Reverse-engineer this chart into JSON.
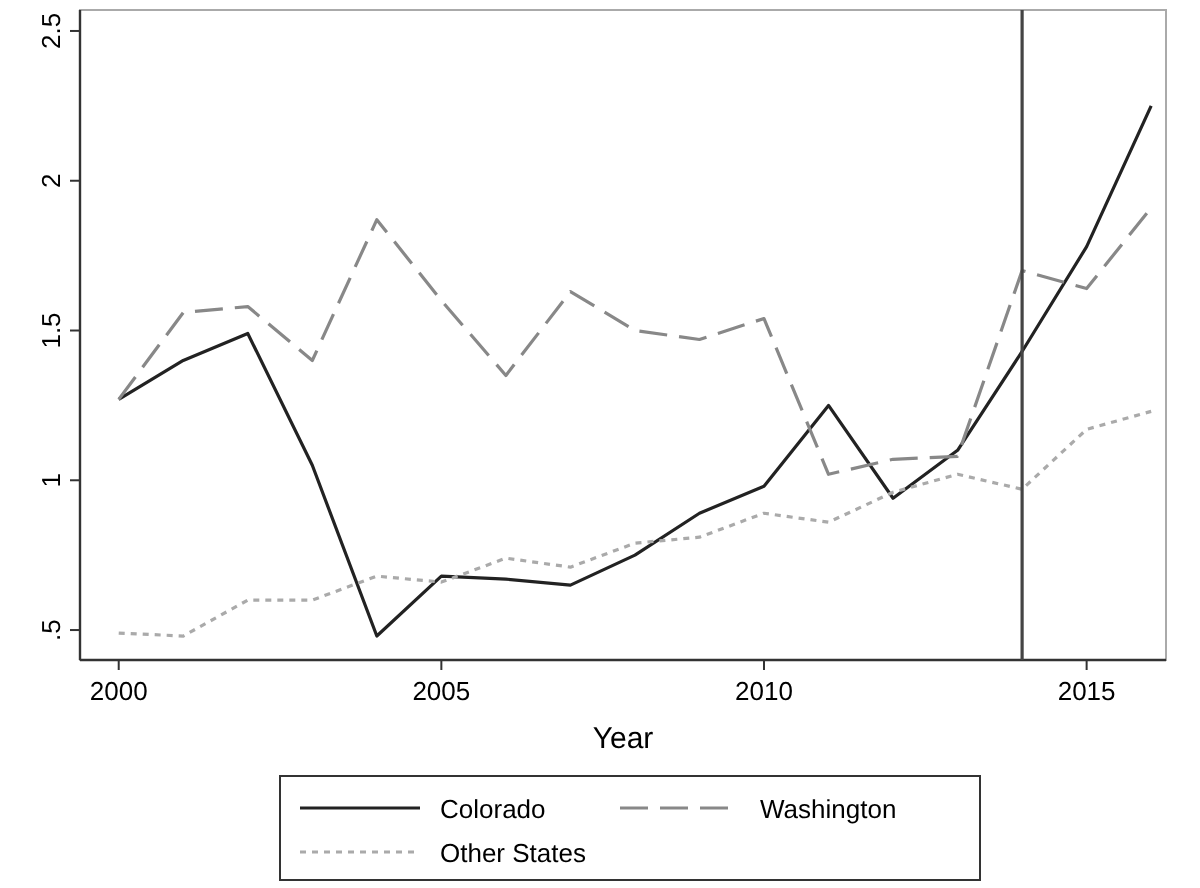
{
  "chart_data": {
    "type": "line",
    "xlabel": "Year",
    "x": [
      2000,
      2001,
      2002,
      2003,
      2004,
      2005,
      2006,
      2007,
      2008,
      2009,
      2010,
      2011,
      2012,
      2013,
      2014,
      2015,
      2016
    ],
    "series": [
      {
        "name": "Colorado",
        "color": "#222222",
        "line_style": "solid",
        "values": [
          1.27,
          1.4,
          1.49,
          1.05,
          0.48,
          0.68,
          0.67,
          0.65,
          0.75,
          0.89,
          0.98,
          1.25,
          0.94,
          1.1,
          1.43,
          1.78,
          2.25
        ]
      },
      {
        "name": "Washington",
        "color": "#888888",
        "line_style": "dashed",
        "values": [
          1.27,
          1.56,
          1.58,
          1.4,
          1.87,
          1.6,
          1.35,
          1.63,
          1.5,
          1.47,
          1.54,
          1.02,
          1.07,
          1.08,
          1.7,
          1.64,
          1.91
        ]
      },
      {
        "name": "Other States",
        "color": "#aaaaaa",
        "line_style": "dotted",
        "values": [
          0.49,
          0.48,
          0.6,
          0.6,
          0.68,
          0.66,
          0.74,
          0.71,
          0.79,
          0.81,
          0.89,
          0.86,
          0.96,
          1.02,
          0.97,
          1.17,
          1.23
        ]
      }
    ],
    "xlim": [
      1999.4,
      2016.23
    ],
    "xticks": [
      2000,
      2005,
      2010,
      2015
    ],
    "ylim": [
      0.4,
      2.57
    ],
    "yticks": [
      {
        "value": 0.5,
        "label": ".5"
      },
      1,
      1.5,
      2,
      2.5
    ],
    "ref_lines": [
      {
        "axis": "x",
        "value": 2014,
        "color": "#444444"
      }
    ],
    "grid": false,
    "legend": "bottom"
  }
}
